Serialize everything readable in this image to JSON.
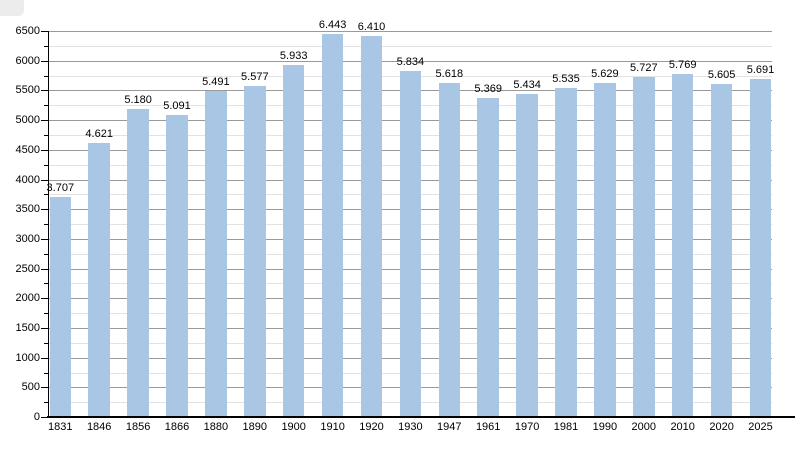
{
  "chart_data": {
    "type": "bar",
    "title": "",
    "xlabel": "",
    "ylabel": "",
    "categories": [
      "1831",
      "1846",
      "1856",
      "1866",
      "1880",
      "1890",
      "1900",
      "1910",
      "1920",
      "1930",
      "1947",
      "1961",
      "1970",
      "1981",
      "1990",
      "2000",
      "2010",
      "2020",
      "2025"
    ],
    "values": [
      3707,
      4621,
      5180,
      5091,
      5491,
      5577,
      5933,
      6443,
      6410,
      5834,
      5618,
      5369,
      5434,
      5535,
      5629,
      5727,
      5769,
      5605,
      5691
    ],
    "value_labels": [
      "3.707",
      "4.621",
      "5.180",
      "5.091",
      "5.491",
      "5.577",
      "5.933",
      "6.443",
      "6.410",
      "5.834",
      "5.618",
      "5.369",
      "5.434",
      "5.535",
      "5.629",
      "5.727",
      "5.769",
      "5.605",
      "5.691"
    ],
    "ylim": [
      0,
      6500
    ],
    "y_major_step": 500,
    "y_minor_step": 250,
    "y_tick_labels": [
      "0",
      "500",
      "1000",
      "1500",
      "2000",
      "2500",
      "3000",
      "3500",
      "4000",
      "4500",
      "5000",
      "5500",
      "6000",
      "6500"
    ],
    "grid": true,
    "legend": "none",
    "colors": {
      "bar_fill": "#a9c6e4",
      "major_grid": "#9a9a9a",
      "minor_grid": "#e2e2e2",
      "axis": "#000000",
      "text": "#000000",
      "background": "#ffffff",
      "corner_box": "#ececec"
    }
  }
}
